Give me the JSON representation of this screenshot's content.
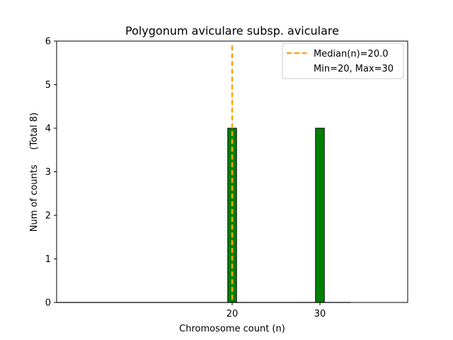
{
  "chart_data": {
    "type": "bar",
    "title": "Polygonum aviculare subsp. aviculare",
    "xlabel": "Chromosome count (n)",
    "ylabel": "Num of counts     (Total 8)",
    "x_ticks": [
      20,
      30
    ],
    "y_ticks": [
      0,
      1,
      2,
      3,
      4,
      5,
      6
    ],
    "xlim": [
      0,
      40
    ],
    "ylim": [
      0,
      6
    ],
    "bars": [
      {
        "x": 20,
        "value": 4
      },
      {
        "x": 30,
        "value": 4
      }
    ],
    "median": {
      "value": 20.0,
      "label": "Median(n)=20.0"
    },
    "legend": {
      "placement": "top-right",
      "entries": [
        "Median(n)=20.0",
        "Min=20, Max=30"
      ]
    },
    "colors": {
      "bar_fill": "#008000",
      "bar_edge": "#000000",
      "median_line": "#FFA500",
      "axes": "#000000"
    }
  }
}
